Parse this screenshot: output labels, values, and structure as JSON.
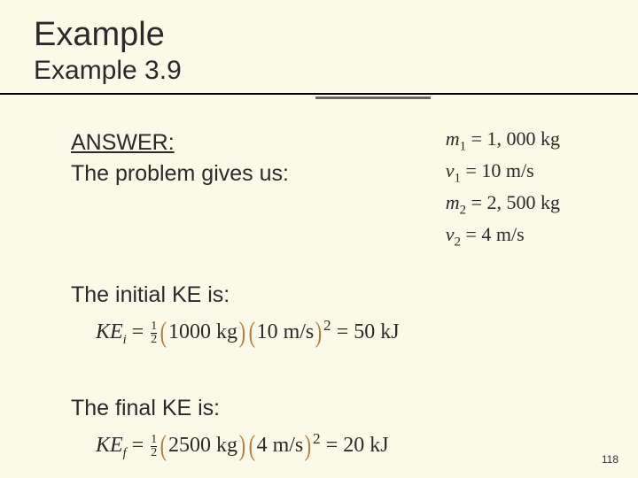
{
  "colors": {
    "background": "#fbfae8",
    "text": "#2a2a2a",
    "paren": "#b07e42",
    "rule": "#000000",
    "rule_short": "#666666"
  },
  "title": "Example",
  "subtitle": "Example 3.9",
  "answer_label": "ANSWER:",
  "problem_gives": "The problem gives us:",
  "givens": {
    "m1": {
      "sym": "m",
      "sub": "1",
      "val": "1, 000 kg"
    },
    "v1": {
      "sym": "v",
      "sub": "1",
      "val": "10 m/s"
    },
    "m2": {
      "sym": "m",
      "sub": "2",
      "val": "2, 500 kg"
    },
    "v2": {
      "sym": "v",
      "sub": "2",
      "val": "4 m/s"
    }
  },
  "initial_label": "The initial KE is:",
  "final_label": "The final KE is:",
  "eq_i": {
    "sub": "i",
    "mass": "1000 kg",
    "vel": "10 m/s",
    "result": "50 kJ"
  },
  "eq_f": {
    "sub": "f",
    "mass": "2500 kg",
    "vel": "4 m/s",
    "result": "20 kJ"
  },
  "frac": {
    "n": "1",
    "d": "2"
  },
  "page_number": "118"
}
